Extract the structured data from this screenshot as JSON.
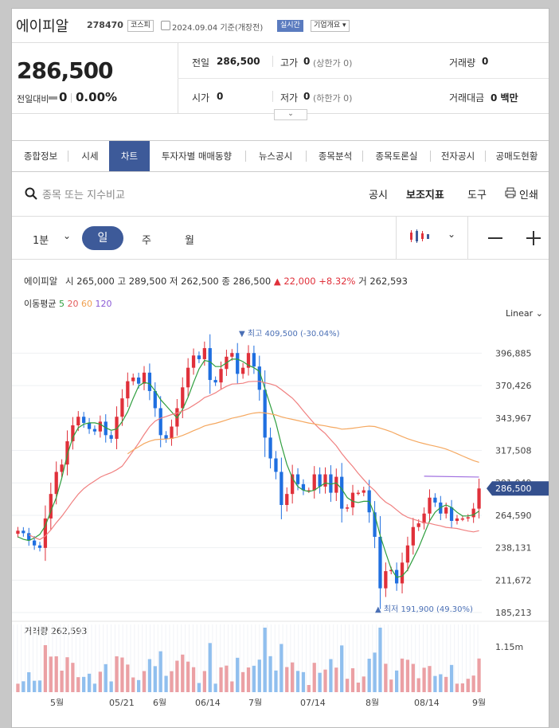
{
  "header": {
    "name": "에이피알",
    "code": "278470",
    "market": "코스피",
    "date": "2024.09.04 기준(개장전)",
    "realtime": "실시간",
    "overview": "기업개요 ▾"
  },
  "quote": {
    "price": "286,500",
    "change_label": "전일대비",
    "change_val": "0",
    "change_pct": "0.00%",
    "prev_label": "전일",
    "prev_val": "286,500",
    "high_label": "고가",
    "high_val": "0",
    "high_note": "(상한가 0)",
    "volume_label": "거래량",
    "volume_val": "0",
    "open_label": "시가",
    "open_val": "0",
    "low_label": "저가",
    "low_val": "0",
    "low_note": "(하한가 0)",
    "amount_label": "거래대금",
    "amount_val": "0 백만"
  },
  "tabs": [
    "종합정보",
    "시세",
    "차트",
    "투자자별 매매동향",
    "뉴스공시",
    "종목분석",
    "종목토론실",
    "전자공시",
    "공매도현황"
  ],
  "active_tab": "차트",
  "toolbar": {
    "search_placeholder": "종목 또는 지수비교",
    "disclosure": "공시",
    "indicator": "보조지표",
    "tools": "도구",
    "print": "인쇄"
  },
  "periods": {
    "minute": "1분",
    "day": "일",
    "week": "주",
    "month": "월"
  },
  "info": {
    "name": "에이피알",
    "open_label": "시",
    "open": "265,000",
    "high_label": "고",
    "high": "289,500",
    "low_label": "저",
    "low": "262,500",
    "close_label": "종",
    "close": "286,500",
    "change": "▲ 22,000",
    "change_pct": "+8.32%",
    "vol_label": "거",
    "vol": "262,593",
    "ma_label": "이동평균",
    "ma": [
      {
        "p": "5",
        "color": "#2e9e3e"
      },
      {
        "p": "20",
        "color": "#e45a5a"
      },
      {
        "p": "60",
        "color": "#f0a050"
      },
      {
        "p": "120",
        "color": "#8a5ad6"
      }
    ],
    "scale": "Linear"
  },
  "chart_data": {
    "type": "candlestick",
    "y_ticks": [
      "396,885",
      "370,426",
      "343,967",
      "317,508",
      "291,049",
      "264,590",
      "238,131",
      "211,672",
      "185,213"
    ],
    "ylim": [
      182000,
      416000
    ],
    "x_labels": [
      "5월",
      "05/21",
      "6월",
      "06/14",
      "7월",
      "07/14",
      "8월",
      "08/14",
      "9월"
    ],
    "current_price_label": "286,500",
    "max_annotation": "▼ 최고 409,500 (-30.04%)",
    "min_annotation": "▲ 최저 191,900 (49.30%)",
    "volume_label": "거래량",
    "volume_value": "262,593",
    "volume_axis": "1.15m",
    "closes": [
      252000,
      250000,
      244000,
      240000,
      238000,
      262000,
      282000,
      300000,
      306000,
      325000,
      338000,
      345000,
      340000,
      335000,
      333000,
      341000,
      330000,
      327000,
      345000,
      360000,
      374000,
      377000,
      372000,
      381000,
      366000,
      352000,
      330000,
      327000,
      337000,
      352000,
      369000,
      385000,
      395000,
      392000,
      401000,
      375000,
      373000,
      384000,
      394000,
      397000,
      380000,
      385000,
      397000,
      386000,
      367000,
      328000,
      311000,
      300000,
      273000,
      282000,
      298000,
      290000,
      285000,
      285000,
      298000,
      288000,
      298000,
      283000,
      296000,
      270000,
      271000,
      283000,
      283000,
      285000,
      267000,
      247000,
      205000,
      219000,
      220000,
      209000,
      226000,
      240000,
      255000,
      258000,
      266000,
      279000,
      275000,
      266000,
      271000,
      260000,
      262000,
      262000,
      263000,
      270000,
      286500
    ],
    "ma5": [
      247000,
      245000,
      244000,
      246000,
      249000,
      256000,
      268000,
      279000,
      295000,
      314000,
      328000,
      336000,
      339000,
      340000,
      340000,
      339000,
      336000,
      334000,
      335000,
      341000,
      349000,
      360000,
      370000,
      373000,
      372000,
      366000,
      359000,
      354000,
      349000,
      344000,
      351000,
      361000,
      373000,
      384000,
      391000,
      390000,
      386000,
      386000,
      389000,
      392000,
      392000,
      390000,
      387000,
      385000,
      382000,
      368000,
      354000,
      340000,
      322000,
      306000,
      295000,
      288000,
      285000,
      284000,
      285000,
      288000,
      291000,
      290000,
      291000,
      286000,
      279000,
      276000,
      275000,
      276000,
      276000,
      265000,
      248000,
      234000,
      221000,
      214000,
      215000,
      220000,
      229000,
      238000,
      249000,
      260000,
      267000,
      271000,
      273000,
      271000,
      267000,
      264000,
      264000,
      265000,
      268000
    ]
  }
}
